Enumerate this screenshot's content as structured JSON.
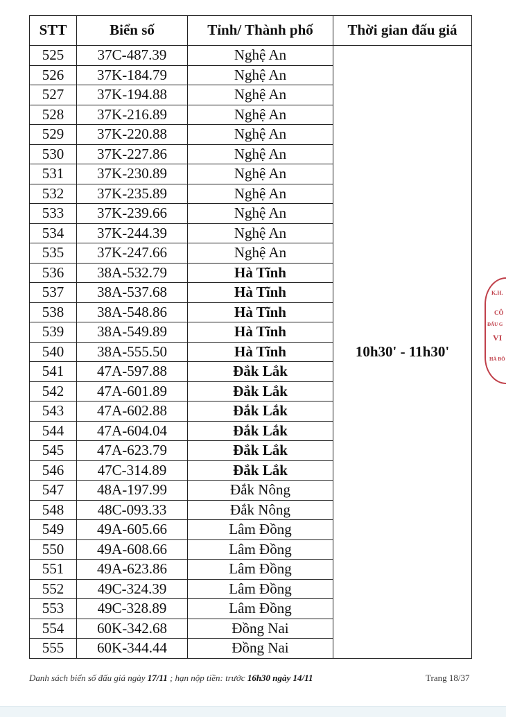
{
  "table": {
    "headers": [
      "STT",
      "Biển số",
      "Tỉnh/ Thành phố",
      "Thời gian đấu giá"
    ],
    "time_slot": "10h30' - 11h30'",
    "rows": [
      [
        "525",
        "37C-487.39",
        "Nghệ An"
      ],
      [
        "526",
        "37K-184.79",
        "Nghệ An"
      ],
      [
        "527",
        "37K-194.88",
        "Nghệ An"
      ],
      [
        "528",
        "37K-216.89",
        "Nghệ An"
      ],
      [
        "529",
        "37K-220.88",
        "Nghệ An"
      ],
      [
        "530",
        "37K-227.86",
        "Nghệ An"
      ],
      [
        "531",
        "37K-230.89",
        "Nghệ An"
      ],
      [
        "532",
        "37K-235.89",
        "Nghệ An"
      ],
      [
        "533",
        "37K-239.66",
        "Nghệ An"
      ],
      [
        "534",
        "37K-244.39",
        "Nghệ An"
      ],
      [
        "535",
        "37K-247.66",
        "Nghệ An"
      ],
      [
        "536",
        "38A-532.79",
        "Hà Tĩnh"
      ],
      [
        "537",
        "38A-537.68",
        "Hà Tĩnh"
      ],
      [
        "538",
        "38A-548.86",
        "Hà Tĩnh"
      ],
      [
        "539",
        "38A-549.89",
        "Hà Tĩnh"
      ],
      [
        "540",
        "38A-555.50",
        "Hà Tĩnh"
      ],
      [
        "541",
        "47A-597.88",
        "Đắk Lắk"
      ],
      [
        "542",
        "47A-601.89",
        "Đắk Lắk"
      ],
      [
        "543",
        "47A-602.88",
        "Đắk Lắk"
      ],
      [
        "544",
        "47A-604.04",
        "Đắk Lắk"
      ],
      [
        "545",
        "47A-623.79",
        "Đắk Lắk"
      ],
      [
        "546",
        "47C-314.89",
        "Đắk Lắk"
      ],
      [
        "547",
        "48A-197.99",
        "Đắk Nông"
      ],
      [
        "548",
        "48C-093.33",
        "Đắk Nông"
      ],
      [
        "549",
        "49A-605.66",
        "Lâm Đồng"
      ],
      [
        "550",
        "49A-608.66",
        "Lâm Đồng"
      ],
      [
        "551",
        "49A-623.86",
        "Lâm Đồng"
      ],
      [
        "552",
        "49C-324.39",
        "Lâm Đồng"
      ],
      [
        "553",
        "49C-328.89",
        "Lâm Đồng"
      ],
      [
        "554",
        "60K-342.68",
        "Đồng Nai"
      ],
      [
        "555",
        "60K-344.44",
        "Đồng Nai"
      ]
    ]
  },
  "footer": {
    "text_1": "Danh sách biển số đấu giá ngày ",
    "date": "17/11",
    "text_2": " ; hạn nộp tiền: trước ",
    "deadline": "16h30 ngày 14/11",
    "page": "Trang 18/37"
  },
  "stamp": {
    "lines": [
      "K.H.",
      "CÔ",
      "ĐẤU G",
      "VI",
      "HÀ ĐÔ"
    ],
    "color": "#c0404a"
  }
}
